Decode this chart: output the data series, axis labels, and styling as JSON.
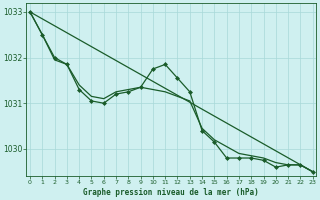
{
  "title": "Graphe pression niveau de la mer (hPa)",
  "bg_color": "#cff0f0",
  "grid_color": "#a8d8d8",
  "line_color": "#1a5c2a",
  "x_values": [
    0,
    1,
    2,
    3,
    4,
    5,
    6,
    7,
    8,
    9,
    10,
    11,
    12,
    13,
    14,
    15,
    16,
    17,
    18,
    19,
    20,
    21,
    22,
    23
  ],
  "hourly": [
    1033.0,
    1032.5,
    1032.0,
    1031.85,
    1031.3,
    1031.05,
    1031.0,
    1031.2,
    1031.25,
    1031.35,
    1031.75,
    1031.85,
    1031.55,
    1031.25,
    1030.4,
    1030.15,
    1029.8,
    1029.8,
    1029.8,
    1029.75,
    1029.6,
    1029.65,
    1029.65,
    1029.5
  ],
  "smooth": [
    1033.0,
    1032.5,
    1031.95,
    1031.85,
    1031.4,
    1031.15,
    1031.1,
    1031.25,
    1031.3,
    1031.35,
    1031.3,
    1031.25,
    1031.15,
    1031.05,
    1030.45,
    1030.2,
    1030.05,
    1029.9,
    1029.85,
    1029.8,
    1029.7,
    1029.65,
    1029.65,
    1029.5
  ],
  "trend_x": [
    0,
    23
  ],
  "trend_y": [
    1033.0,
    1029.5
  ],
  "ylim": [
    1029.4,
    1033.2
  ],
  "yticks": [
    1030,
    1031,
    1032,
    1033
  ],
  "xticks": [
    0,
    1,
    2,
    3,
    4,
    5,
    6,
    7,
    8,
    9,
    10,
    11,
    12,
    13,
    14,
    15,
    16,
    17,
    18,
    19,
    20,
    21,
    22,
    23
  ],
  "marker": "D",
  "markersize": 2.0,
  "linewidth": 0.9
}
